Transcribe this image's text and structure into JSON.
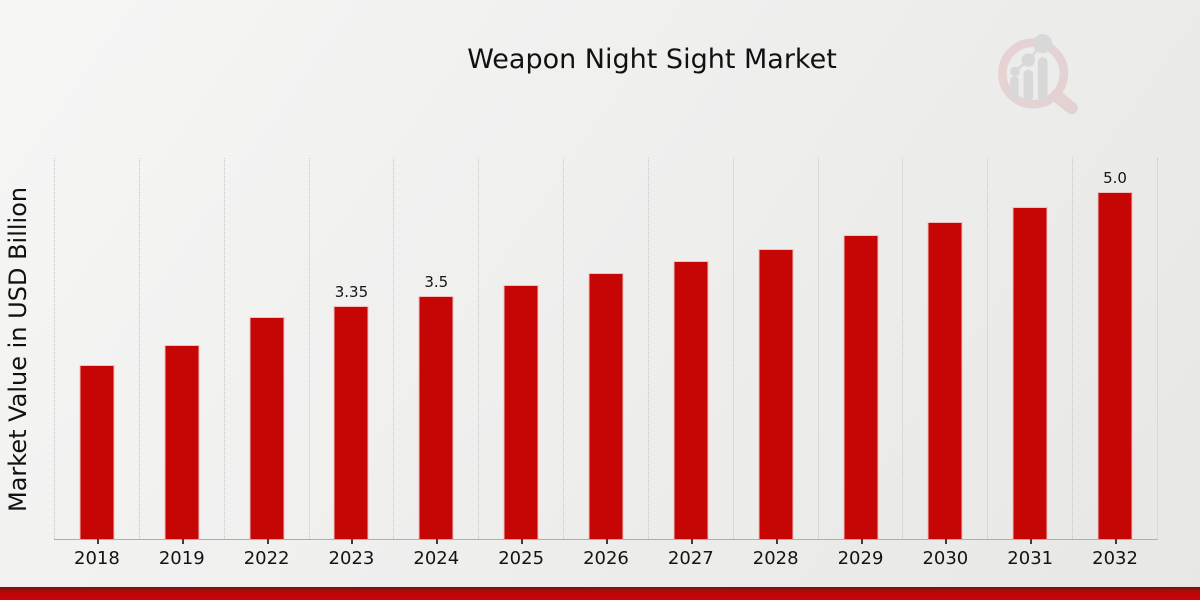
{
  "title": "Weapon Night Sight Market",
  "ylabel": "Market Value in USD Billion",
  "logo": {
    "name": "magnifier-growth-chart-watermark"
  },
  "colors": {
    "bar": "#c60505",
    "accent_strip": "#c30505",
    "gridline": "#c7c7c7",
    "axis_line": "#aeaeae",
    "text": "#141414",
    "logo_pink": "#debbbb",
    "logo_gray": "#c5c5c7"
  },
  "chart_data": {
    "type": "bar",
    "title": "Weapon Night Sight Market",
    "xlabel": "",
    "ylabel": "Market Value in USD Billion",
    "categories": [
      "2018",
      "2019",
      "2022",
      "2023",
      "2024",
      "2025",
      "2026",
      "2027",
      "2028",
      "2029",
      "2030",
      "2031",
      "2032"
    ],
    "values": [
      2.5,
      2.8,
      3.2,
      3.35,
      3.5,
      3.66,
      3.83,
      4.0,
      4.18,
      4.37,
      4.57,
      4.78,
      5.0
    ],
    "value_labels": [
      "",
      "",
      "",
      "3.35",
      "3.5",
      "",
      "",
      "",
      "",
      "",
      "",
      "",
      "5.0"
    ],
    "unit": "USD Billion",
    "ylim": [
      0,
      5.5
    ],
    "grid": "vertical-only",
    "legend": "none",
    "bar_color": "#c60505"
  }
}
